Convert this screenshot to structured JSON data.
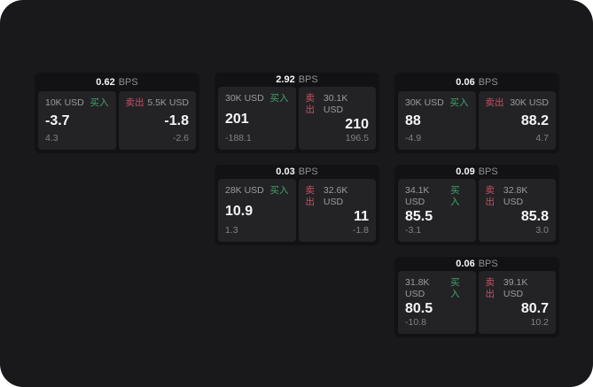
{
  "labels": {
    "bps": "BPS",
    "buy": "买入",
    "sell": "卖出"
  },
  "colors": {
    "page_bg": "#19191b",
    "card_bg": "#121214",
    "panel_bg": "#232326",
    "buy_green": "#3fa469",
    "sell_red": "#c94f63",
    "text_white": "#f5f6f7",
    "text_gray": "#9a9ca0"
  },
  "cards": [
    {
      "bps": "0.62",
      "buy": {
        "amount": "10K USD",
        "value": "-3.7",
        "delta": "4.3"
      },
      "sell": {
        "amount": "5.5K USD",
        "value": "-1.8",
        "delta": "-2.6"
      }
    },
    {
      "bps": "2.92",
      "buy": {
        "amount": "30K USD",
        "value": "201",
        "delta": "-188.1"
      },
      "sell": {
        "amount": "30.1K USD",
        "value": "210",
        "delta": "196.5"
      }
    },
    {
      "bps": "0.06",
      "buy": {
        "amount": "30K USD",
        "value": "88",
        "delta": "-4.9"
      },
      "sell": {
        "amount": "30K USD",
        "value": "88.2",
        "delta": "4.7"
      }
    },
    {
      "bps": "0.03",
      "buy": {
        "amount": "28K USD",
        "value": "10.9",
        "delta": "1.3"
      },
      "sell": {
        "amount": "32.6K USD",
        "value": "11",
        "delta": "-1.8"
      }
    },
    {
      "bps": "0.09",
      "buy": {
        "amount": "34.1K USD",
        "value": "85.5",
        "delta": "-3.1"
      },
      "sell": {
        "amount": "32.8K USD",
        "value": "85.8",
        "delta": "3.0"
      }
    },
    {
      "bps": "0.06",
      "buy": {
        "amount": "31.8K USD",
        "value": "80.5",
        "delta": "-10.8"
      },
      "sell": {
        "amount": "39.1K USD",
        "value": "80.7",
        "delta": "10.2"
      }
    }
  ]
}
